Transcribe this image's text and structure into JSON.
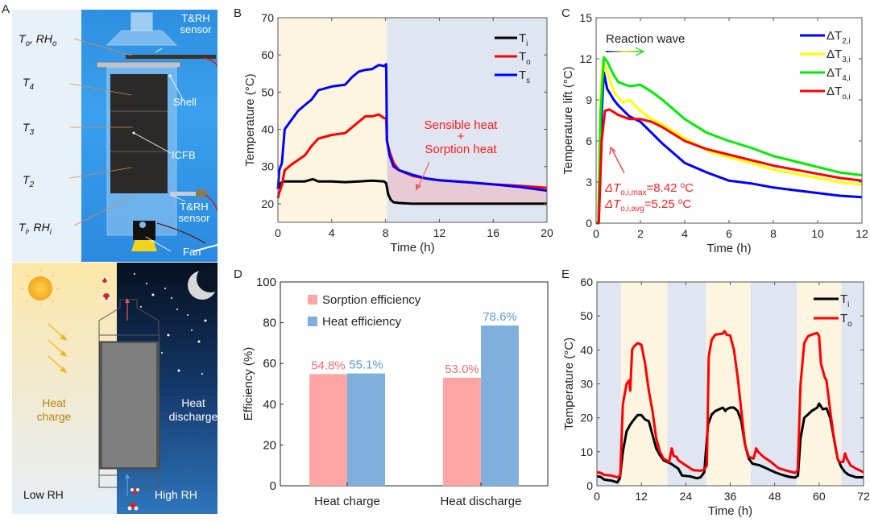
{
  "panels": {
    "A": {
      "letter": "A",
      "photo_labels": {
        "to_rho": "To, RHo",
        "t4": "T4",
        "t3": "T3",
        "t2": "T2",
        "ti_rhi": "Ti, RHi",
        "sensor_top_line1": "T&RH",
        "sensor_top_line2": "sensor",
        "shell": "Shell",
        "icfb": "ICFB",
        "sensor_bottom_line1": "T&RH",
        "sensor_bottom_line2": "sensor",
        "fan": "Fan"
      },
      "scheme_labels": {
        "heat_charge_line1": "Heat",
        "heat_charge_line2": "charge",
        "heat_discharge_line1": "Heat",
        "heat_discharge_line2": "discharge",
        "low_rh": "Low RH",
        "high_rh": "High RH"
      }
    },
    "B": {
      "letter": "B"
    },
    "C": {
      "letter": "C"
    },
    "D": {
      "letter": "D"
    },
    "E": {
      "letter": "E"
    }
  },
  "chart_data": [
    {
      "id": "B",
      "type": "line",
      "xlabel": "Time (h)",
      "ylabel": "Temperature (°C)",
      "xlim": [
        0,
        20
      ],
      "ylim": [
        15,
        70
      ],
      "xticks": [
        0,
        4,
        8,
        12,
        16,
        20
      ],
      "yticks": [
        20,
        30,
        40,
        50,
        60,
        70
      ],
      "legend_position": "top-right",
      "shaded_regions": [
        {
          "x": [
            0,
            8.1
          ],
          "color": "#fdf5e0",
          "meaning": "charge"
        },
        {
          "x": [
            8.1,
            20
          ],
          "color": "#dfe6f2",
          "meaning": "discharge"
        }
      ],
      "annotation": {
        "line1": "Sensible heat",
        "line2": "+",
        "line3": "Sorption heat",
        "color": "#ff1a1a"
      },
      "series": [
        {
          "name": "Ti",
          "label_main": "T",
          "label_sub": "i",
          "color": "#000000",
          "x": [
            0,
            0.2,
            0.4,
            1,
            2,
            2.6,
            3,
            4,
            5,
            6,
            7,
            7.9,
            8.05,
            8.2,
            8.4,
            8.6,
            9,
            10,
            12,
            14,
            16,
            18,
            20
          ],
          "y": [
            24,
            25.5,
            26,
            26,
            26,
            26.6,
            26,
            26,
            25.8,
            26,
            26.2,
            26,
            25.5,
            22.5,
            21,
            20.4,
            20.2,
            20,
            20,
            20,
            20,
            20,
            20
          ]
        },
        {
          "name": "To",
          "label_main": "T",
          "label_sub": "o",
          "color": "#ff0000",
          "x": [
            0,
            0.1,
            0.3,
            0.5,
            1,
            2,
            2.5,
            3,
            4,
            5,
            5.5,
            6,
            6.5,
            7,
            7.5,
            7.9,
            8.05,
            8.1,
            8.3,
            8.6,
            9,
            10,
            11,
            12,
            14,
            16,
            18,
            20
          ],
          "y": [
            21.5,
            23,
            25,
            29,
            30.5,
            33,
            35.5,
            37.5,
            38.5,
            39,
            40.5,
            42,
            43.5,
            43.5,
            44,
            43,
            43,
            37,
            34,
            31,
            29,
            27.5,
            26.8,
            26.3,
            25.8,
            25.2,
            24.8,
            24.3
          ]
        },
        {
          "name": "Ts",
          "label_main": "T",
          "label_sub": "s",
          "color": "#0000ff",
          "x": [
            0,
            0.1,
            0.3,
            0.5,
            1,
            1.5,
            2,
            2.5,
            3,
            4,
            5,
            5.5,
            6,
            6.5,
            7,
            7.5,
            7.9,
            8.05,
            8.1,
            8.3,
            8.6,
            9,
            10,
            11,
            12,
            14,
            16,
            18,
            20
          ],
          "y": [
            24,
            29,
            31,
            40,
            42.5,
            45,
            46.5,
            48,
            50.5,
            51.5,
            52,
            54,
            55.5,
            56,
            56.2,
            57.3,
            57,
            57.5,
            37,
            33,
            30,
            29,
            27.8,
            26.8,
            26.3,
            25.8,
            25.2,
            24.5,
            23.5
          ]
        }
      ]
    },
    {
      "id": "C",
      "type": "line",
      "xlabel": "Time (h)",
      "ylabel": "Temperature lift (°C)",
      "xlim": [
        0,
        12
      ],
      "ylim": [
        0,
        15
      ],
      "xticks": [
        0,
        2,
        4,
        6,
        8,
        10,
        12
      ],
      "yticks": [
        0,
        3,
        6,
        9,
        12,
        15
      ],
      "legend_position": "top-right",
      "annotations": {
        "reaction_wave": "Reaction wave",
        "max_label": "ΔTo,i,max=8.42 oC",
        "avg_label": "ΔTo,i,avg=5.25 oC",
        "max_value_c": 8.42,
        "avg_value_c": 5.25
      },
      "series": [
        {
          "name": "ΔT2,i",
          "label_main": "ΔT",
          "label_sub": "2,i",
          "color": "#0000ff",
          "x": [
            0,
            0.1,
            0.25,
            0.35,
            0.5,
            0.8,
            1,
            1.5,
            2,
            2.5,
            3,
            4,
            5,
            6,
            7,
            8,
            9,
            10,
            11,
            12
          ],
          "y": [
            0,
            0,
            8,
            11,
            9.8,
            9,
            8.6,
            7.8,
            7.4,
            6.6,
            5.8,
            4.4,
            3.7,
            3.1,
            2.9,
            2.6,
            2.4,
            2.2,
            2.0,
            1.9
          ]
        },
        {
          "name": "ΔT3,i",
          "label_main": "ΔT",
          "label_sub": "3,i",
          "color": "#ffff00",
          "x": [
            0,
            0.1,
            0.2,
            0.3,
            0.5,
            0.8,
            1.2,
            1.5,
            2,
            2.5,
            3,
            4,
            5,
            6,
            7,
            8,
            9,
            10,
            11,
            12
          ],
          "y": [
            0,
            0,
            9,
            11.8,
            11,
            9.6,
            8.8,
            9,
            8.2,
            7.6,
            7.2,
            6.2,
            5.3,
            4.8,
            4.4,
            3.9,
            3.6,
            3.3,
            3.0,
            2.8
          ]
        },
        {
          "name": "ΔT4,i",
          "label_main": "ΔT",
          "label_sub": "4,i",
          "color": "#00ee00",
          "x": [
            0,
            0.1,
            0.2,
            0.35,
            0.5,
            0.8,
            1,
            1.5,
            2,
            2.5,
            3,
            4,
            5,
            6,
            7,
            8,
            9,
            10,
            11,
            12
          ],
          "y": [
            0,
            0,
            8,
            12.1,
            11.8,
            10.8,
            10.3,
            10,
            10.1,
            9.6,
            9,
            7.6,
            6.6,
            6,
            5.5,
            4.9,
            4.5,
            4.1,
            3.7,
            3.5
          ]
        },
        {
          "name": "ΔTo,i",
          "label_main": "ΔT",
          "label_sub": "o,i",
          "color": "#ff0000",
          "x": [
            0,
            0.12,
            0.25,
            0.4,
            0.6,
            1,
            1.5,
            2,
            2.5,
            3,
            4,
            5,
            6,
            7,
            8,
            9,
            10,
            11,
            12
          ],
          "y": [
            0,
            0,
            6,
            8.2,
            8.3,
            7.9,
            7.6,
            7.6,
            7.4,
            7.0,
            6.0,
            5.4,
            5.0,
            4.6,
            4.2,
            3.9,
            3.6,
            3.3,
            3.1
          ]
        }
      ]
    },
    {
      "id": "D",
      "type": "bar",
      "xlabel": "",
      "ylabel": "Efficiency (%)",
      "ylim": [
        0,
        100
      ],
      "yticks": [
        0,
        20,
        40,
        60,
        80,
        100
      ],
      "categories": [
        "Heat charge",
        "Heat discharge"
      ],
      "legend_position": "top-left",
      "series": [
        {
          "name": "Sorption efficiency",
          "color": "#ffa5a5",
          "label_color": "#f26d6d",
          "values": [
            54.8,
            53.0
          ],
          "labels": [
            "54.8%",
            "53.0%"
          ]
        },
        {
          "name": "Heat efficiency",
          "color": "#7fb0dd",
          "label_color": "#5a9bd6",
          "values": [
            55.1,
            78.6
          ],
          "labels": [
            "55.1%",
            "78.6%"
          ]
        }
      ]
    },
    {
      "id": "E",
      "type": "line",
      "xlabel": "Time (h)",
      "ylabel": "Temperature (°C)",
      "xlim": [
        0,
        72
      ],
      "ylim": [
        0,
        60
      ],
      "xticks": [
        0,
        12,
        24,
        36,
        48,
        60,
        72
      ],
      "yticks": [
        0,
        10,
        20,
        30,
        40,
        50,
        60
      ],
      "legend_position": "top-right",
      "shaded_regions": [
        {
          "x": [
            0,
            6.5
          ],
          "color": "#dfe6f2"
        },
        {
          "x": [
            6.5,
            19
          ],
          "color": "#fdf5e0"
        },
        {
          "x": [
            19,
            29.5
          ],
          "color": "#dfe6f2"
        },
        {
          "x": [
            29.5,
            41.5
          ],
          "color": "#fdf5e0"
        },
        {
          "x": [
            41.5,
            54
          ],
          "color": "#dfe6f2"
        },
        {
          "x": [
            54,
            66
          ],
          "color": "#fdf5e0"
        },
        {
          "x": [
            66,
            72
          ],
          "color": "#dfe6f2"
        }
      ],
      "series": [
        {
          "name": "Ti",
          "label_main": "T",
          "label_sub": "i",
          "color": "#000000",
          "x": [
            0,
            1,
            2,
            4,
            5.5,
            6.2,
            7,
            8,
            9,
            10,
            11,
            12,
            13,
            14,
            15,
            16,
            17,
            18,
            19,
            20,
            22,
            23,
            25,
            27,
            28,
            29,
            30,
            31,
            32,
            34,
            34.7,
            35,
            36,
            37,
            38,
            39,
            40,
            41,
            42,
            44,
            46,
            48,
            50,
            52,
            53.5,
            54.3,
            55,
            56,
            57,
            58,
            59.5,
            60,
            61,
            62,
            63,
            64,
            65,
            66,
            67,
            68,
            70,
            72
          ],
          "y": [
            2.8,
            2.6,
            1.8,
            1.5,
            1,
            2.2,
            10,
            16,
            18,
            19.5,
            20.8,
            20.8,
            19.5,
            19,
            15,
            11,
            9,
            7.5,
            7,
            6.5,
            5,
            3,
            2.8,
            2.2,
            2.5,
            4,
            18,
            21,
            22,
            23,
            22,
            22.5,
            23,
            23,
            22,
            19,
            12,
            8,
            6.5,
            6,
            5,
            4,
            3.2,
            2.6,
            2.4,
            3,
            14,
            20,
            21,
            22,
            23,
            24.2,
            22.5,
            22.8,
            20,
            14,
            8,
            5.5,
            4,
            3.2,
            2.5,
            2.5
          ]
        },
        {
          "name": "To",
          "label_main": "T",
          "label_sub": "o",
          "color": "#ff0000",
          "x": [
            0,
            1,
            2,
            4,
            5.5,
            6.3,
            7,
            8,
            8.7,
            9,
            9.5,
            10,
            11,
            12,
            13,
            14,
            15,
            16,
            17,
            18,
            19.5,
            20.2,
            20.7,
            21.5,
            22,
            24,
            26,
            28,
            29,
            29.7,
            30.2,
            31,
            32,
            34,
            34.5,
            35,
            36,
            37,
            38,
            39,
            40,
            41,
            42.3,
            43,
            43.5,
            45,
            47,
            49,
            51,
            53.5,
            54.2,
            55,
            56,
            57,
            58,
            59.5,
            60,
            60.5,
            61.5,
            62,
            63,
            64,
            65,
            65.5,
            66.5,
            67,
            67.5,
            68.5,
            70,
            72
          ],
          "y": [
            4,
            3.8,
            3.2,
            3,
            2.5,
            3,
            24,
            30,
            31,
            28,
            40,
            41,
            42,
            41.5,
            36,
            28,
            22,
            14,
            10,
            8,
            7,
            11,
            8.8,
            8.5,
            7.5,
            6,
            4.6,
            4.4,
            4.8,
            6,
            38,
            43,
            44.5,
            44.8,
            45.5,
            44.5,
            44.2,
            40,
            32,
            22,
            12,
            8.5,
            8,
            11,
            10,
            8.5,
            7,
            5.2,
            4.5,
            3.8,
            4.5,
            30,
            42,
            44,
            44.5,
            45,
            44,
            36,
            32,
            31,
            22,
            14,
            8,
            7,
            7,
            9.5,
            8,
            6,
            5,
            4
          ]
        }
      ]
    }
  ]
}
